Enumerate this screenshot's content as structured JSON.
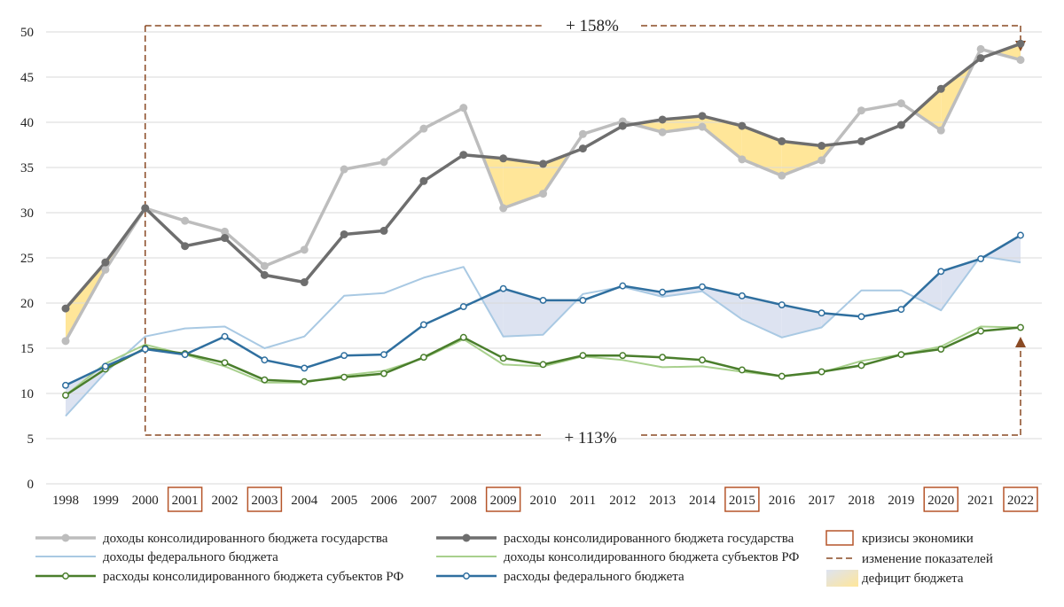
{
  "chart_data": {
    "type": "line",
    "title": "",
    "xlabel": "",
    "ylabel": "",
    "ylim": [
      0,
      50
    ],
    "yticks": [
      0,
      5,
      10,
      15,
      20,
      25,
      30,
      35,
      40,
      45,
      50
    ],
    "grid": "horizontal",
    "legend_position": "bottom",
    "categories": [
      "1998",
      "1999",
      "2000",
      "2001",
      "2002",
      "2003",
      "2004",
      "2005",
      "2006",
      "2007",
      "2008",
      "2009",
      "2010",
      "2011",
      "2012",
      "2013",
      "2014",
      "2015",
      "2016",
      "2017",
      "2018",
      "2019",
      "2020",
      "2021",
      "2022"
    ],
    "crisis_years": [
      "2001",
      "2003",
      "2009",
      "2015",
      "2020",
      "2022"
    ],
    "series": [
      {
        "key": "cons_rev",
        "name": "доходы консолидированного бюджета государства",
        "color": "#bdbdbd",
        "marker": "filled",
        "width": 3.5,
        "values": [
          15.8,
          23.7,
          30.5,
          29.1,
          27.9,
          24.1,
          25.9,
          34.8,
          35.6,
          39.3,
          41.6,
          30.5,
          32.1,
          38.7,
          40.1,
          38.9,
          39.5,
          35.9,
          34.1,
          35.8,
          41.3,
          42.1,
          39.1,
          48.1,
          46.9
        ]
      },
      {
        "key": "cons_exp",
        "name": "расходы консолидированного бюджета государства",
        "color": "#6e6e6e",
        "marker": "filled",
        "width": 3.5,
        "values": [
          19.4,
          24.5,
          30.5,
          26.3,
          27.2,
          23.1,
          22.3,
          27.6,
          28.0,
          33.5,
          36.4,
          36.0,
          35.4,
          37.1,
          39.6,
          40.3,
          40.7,
          39.6,
          37.9,
          37.4,
          37.9,
          39.7,
          43.7,
          47.1,
          48.7
        ]
      },
      {
        "key": "fed_rev",
        "name": "доходы федерального бюджета",
        "color": "#a9c9e3",
        "marker": "none",
        "width": 2,
        "values": [
          7.5,
          12.3,
          16.3,
          17.2,
          17.4,
          15.0,
          16.3,
          20.8,
          21.1,
          22.8,
          24.0,
          16.3,
          16.5,
          21.0,
          21.8,
          20.7,
          21.3,
          18.2,
          16.2,
          17.3,
          21.4,
          21.4,
          19.2,
          25.2,
          24.5
        ]
      },
      {
        "key": "reg_rev",
        "name": "доходы консолидированного бюджета субъектов РФ",
        "color": "#a8d08d",
        "marker": "none",
        "width": 2,
        "values": [
          9.8,
          13.3,
          15.4,
          14.3,
          13.0,
          11.2,
          11.2,
          12.0,
          12.5,
          13.9,
          16.0,
          13.2,
          13.0,
          14.1,
          13.7,
          12.9,
          13.0,
          12.4,
          11.9,
          12.3,
          13.6,
          14.3,
          15.2,
          17.4,
          17.3
        ]
      },
      {
        "key": "reg_exp",
        "name": "расходы консолидированного бюджета субъектов РФ",
        "color": "#4a7e2c",
        "marker": "hollow",
        "width": 2.5,
        "values": [
          9.8,
          12.7,
          15.0,
          14.4,
          13.4,
          11.5,
          11.3,
          11.8,
          12.2,
          14.0,
          16.2,
          13.9,
          13.2,
          14.2,
          14.2,
          14.0,
          13.7,
          12.6,
          11.9,
          12.4,
          13.1,
          14.3,
          14.9,
          16.9,
          17.3
        ]
      },
      {
        "key": "fed_exp",
        "name": "расходы федерального бюджета",
        "color": "#2f6f9f",
        "marker": "hollow",
        "width": 2.5,
        "values": [
          10.9,
          13.0,
          14.9,
          14.3,
          16.3,
          13.7,
          12.8,
          14.2,
          14.3,
          17.6,
          19.6,
          21.6,
          20.3,
          20.3,
          21.9,
          21.2,
          21.8,
          20.8,
          19.8,
          18.9,
          18.5,
          19.3,
          23.5,
          24.9,
          27.5
        ]
      }
    ],
    "deficit_fill": "#ffe699",
    "deficit_fill_federal": "#dde3f1",
    "annotations": {
      "top_change": "+ 158%",
      "bottom_change": "+ 113%"
    },
    "change_arrow_color": "#8a4a24",
    "legend": {
      "crisis": "кризисы экономики",
      "change": "изменение показателей",
      "deficit": "дефицит бюджета"
    },
    "crisis_box_color": "#b5552a"
  }
}
